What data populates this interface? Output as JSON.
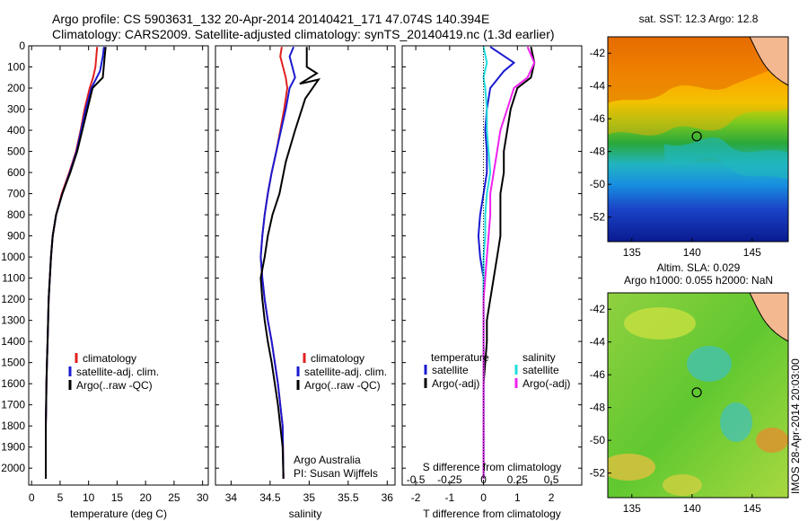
{
  "header": {
    "line1": "Argo profile: CS 5903631_132 20-Apr-2014 20140421_171 47.074S 140.394E",
    "line2": "Climatology: CARS2009. Satellite-adjusted climatology: synTS_20140419.nc (1.3d earlier)"
  },
  "colors": {
    "climatology": "#e02020",
    "satellite": "#1a1ad0",
    "argo": "#000000",
    "salinity_satellite": "#22dddd",
    "salinity_argo": "#ee22ee"
  },
  "chart_data": [
    {
      "type": "line",
      "panel": "temperature",
      "xlabel": "temperature (deg C)",
      "ylabel": "",
      "xlim": [
        -0.5,
        31
      ],
      "ylim": [
        2080,
        0
      ],
      "x_ticks": [
        "0",
        "5",
        "10",
        "15",
        "20",
        "25",
        "30"
      ],
      "y_ticks": [
        "0",
        "100",
        "200",
        "300",
        "400",
        "500",
        "600",
        "700",
        "800",
        "900",
        "1000",
        "1100",
        "1200",
        "1300",
        "1400",
        "1500",
        "1600",
        "1700",
        "1800",
        "1900",
        "2000"
      ],
      "legend": [
        "climatology",
        "satellite-adj. clim.",
        "Argo(..raw -QC)"
      ],
      "legend_position": "lower-right",
      "series": [
        {
          "name": "climatology",
          "color": "red",
          "x": [
            11.5,
            11.2,
            10.8,
            10.2,
            9.3,
            8.6,
            7.8,
            6.6,
            5.3,
            4.3,
            3.7,
            3.4,
            3.2,
            3.0,
            2.9,
            2.8,
            2.7,
            2.6,
            2.55,
            2.5,
            2.5
          ],
          "depth": [
            5,
            100,
            150,
            200,
            300,
            400,
            500,
            600,
            700,
            800,
            900,
            1000,
            1100,
            1200,
            1300,
            1400,
            1500,
            1600,
            1700,
            1800,
            2050
          ]
        },
        {
          "name": "satellite-adj. clim.",
          "color": "blue",
          "x": [
            12.7,
            12.5,
            12.0,
            10.5,
            9.5,
            8.7,
            7.9,
            6.7,
            5.4,
            4.3,
            3.7,
            3.4,
            3.2,
            3.0,
            2.9,
            2.8,
            2.7,
            2.6,
            2.55,
            2.5,
            2.5
          ],
          "depth": [
            5,
            50,
            120,
            200,
            300,
            400,
            500,
            600,
            700,
            800,
            900,
            1000,
            1100,
            1200,
            1300,
            1400,
            1500,
            1600,
            1700,
            1800,
            2050
          ]
        },
        {
          "name": "Argo(..raw -QC)",
          "color": "black",
          "x": [
            13.0,
            12.8,
            12.5,
            10.7,
            9.8,
            8.9,
            8.0,
            6.8,
            5.4,
            4.3,
            3.7,
            3.4,
            3.2,
            3.0,
            2.9,
            2.8,
            2.7,
            2.6,
            2.55,
            2.5,
            2.5
          ],
          "depth": [
            5,
            60,
            150,
            200,
            300,
            400,
            500,
            600,
            700,
            800,
            900,
            1000,
            1100,
            1200,
            1300,
            1400,
            1500,
            1600,
            1700,
            1800,
            2050
          ]
        }
      ]
    },
    {
      "type": "line",
      "panel": "salinity",
      "xlabel": "salinity",
      "xlim": [
        33.8,
        36.1
      ],
      "ylim": [
        2080,
        0
      ],
      "x_ticks": [
        "34",
        "34.5",
        "35",
        "35.5",
        "36"
      ],
      "legend": [
        "climatology",
        "satellite-adj. clim.",
        "Argo(..raw -QC)"
      ],
      "annotation": [
        "Argo Australia",
        "PI: Susan Wijffels"
      ],
      "series": [
        {
          "name": "climatology",
          "color": "red",
          "x": [
            34.65,
            34.63,
            34.7,
            34.72,
            34.68,
            34.63,
            34.58,
            34.52,
            34.47,
            34.43,
            34.4,
            34.38,
            34.4,
            34.43,
            34.47,
            34.52,
            34.56,
            34.6,
            34.63,
            34.66,
            34.67
          ],
          "depth": [
            5,
            50,
            150,
            200,
            300,
            400,
            500,
            600,
            700,
            800,
            900,
            1000,
            1100,
            1200,
            1300,
            1400,
            1500,
            1600,
            1700,
            1800,
            2050
          ]
        },
        {
          "name": "satellite-adj. clim.",
          "color": "blue",
          "x": [
            34.8,
            34.75,
            34.82,
            34.75,
            34.7,
            34.64,
            34.58,
            34.52,
            34.47,
            34.43,
            34.4,
            34.38,
            34.4,
            34.43,
            34.47,
            34.52,
            34.56,
            34.6,
            34.63,
            34.66,
            34.67
          ],
          "depth": [
            5,
            50,
            150,
            200,
            300,
            400,
            500,
            600,
            700,
            800,
            900,
            1000,
            1100,
            1200,
            1300,
            1400,
            1500,
            1600,
            1700,
            1800,
            2050
          ]
        },
        {
          "name": "Argo(..raw -QC)",
          "color": "black",
          "x": [
            34.97,
            34.97,
            35.1,
            34.88,
            35.12,
            34.95,
            34.82,
            34.7,
            34.62,
            34.53,
            34.47,
            34.43,
            34.38,
            34.4,
            34.43,
            34.47,
            34.52,
            34.56,
            34.6,
            34.63,
            34.66,
            34.67
          ],
          "depth": [
            5,
            100,
            130,
            180,
            160,
            250,
            400,
            550,
            700,
            800,
            900,
            1000,
            1100,
            1200,
            1300,
            1400,
            1500,
            1600,
            1700,
            1800,
            1900,
            2050
          ]
        }
      ]
    },
    {
      "type": "line",
      "panel": "difference",
      "xlabel": "T difference from climatology",
      "xlabel_top": "S difference from climatology",
      "xlim": [
        -2.4,
        2.9
      ],
      "ylim": [
        2080,
        0
      ],
      "x_ticks": [
        "-2",
        "-1",
        "0",
        "1",
        "2"
      ],
      "x_ticks_top": [
        "-0.5",
        "-0.25",
        "0",
        "0.25",
        "0.5"
      ],
      "legend_left_title": "temperature",
      "legend_right_title": "salinity",
      "legend_left": [
        "satellite",
        "Argo(-adj)"
      ],
      "legend_right": [
        "satellite",
        "Argo(-adj)"
      ],
      "series": [
        {
          "name": "temperature satellite",
          "color": "blue",
          "x": [
            0.2,
            0.9,
            0.6,
            0.2,
            0.1,
            0.05,
            0.1,
            0.1,
            0.0,
            -0.1,
            -0.15,
            -0.1,
            0.0,
            0.0,
            0.0,
            0.0,
            0.0,
            0.0,
            0.0,
            0.0
          ],
          "depth": [
            5,
            80,
            120,
            200,
            300,
            400,
            500,
            600,
            700,
            800,
            900,
            1000,
            1100,
            1200,
            1300,
            1400,
            1500,
            1600,
            1800,
            2050
          ]
        },
        {
          "name": "temperature Argo(-adj)",
          "color": "black",
          "x": [
            1.4,
            1.5,
            1.4,
            1.0,
            0.8,
            0.7,
            0.6,
            0.6,
            0.5,
            0.5,
            0.5,
            0.4,
            0.3,
            0.2,
            0.1,
            0.1,
            0.05,
            0.0,
            0.0,
            0.0
          ],
          "depth": [
            5,
            80,
            150,
            200,
            300,
            400,
            500,
            600,
            700,
            800,
            900,
            1000,
            1100,
            1200,
            1300,
            1400,
            1500,
            1600,
            1800,
            2050
          ]
        },
        {
          "name": "salinity satellite",
          "color": "cyan",
          "x": [
            0.0,
            0.1,
            0.0,
            0.05,
            0.1,
            0.1,
            0.15,
            0.2,
            0.1,
            0.05,
            0.05,
            0.0,
            0.0,
            0.0,
            0.0,
            0.0,
            0.0,
            0.0,
            0.0,
            0.0
          ],
          "depth": [
            5,
            80,
            150,
            200,
            300,
            400,
            500,
            600,
            700,
            800,
            900,
            1000,
            1100,
            1200,
            1300,
            1400,
            1500,
            1600,
            1800,
            2050
          ]
        },
        {
          "name": "salinity Argo(-adj)",
          "color": "magenta",
          "x": [
            1.3,
            1.5,
            1.3,
            0.9,
            0.7,
            0.5,
            0.4,
            0.3,
            0.2,
            0.2,
            0.15,
            0.1,
            0.05,
            0.0,
            0.0,
            0.0,
            0.0,
            0.0,
            0.0,
            0.0
          ],
          "depth": [
            5,
            80,
            150,
            200,
            300,
            400,
            500,
            600,
            700,
            800,
            900,
            1000,
            1100,
            1200,
            1300,
            1400,
            1500,
            1600,
            1800,
            2050
          ]
        }
      ]
    },
    {
      "type": "heatmap",
      "panel": "sst-map",
      "title": "sat. SST: 12.3 Argo: 12.8",
      "xlim": [
        133,
        148
      ],
      "ylim": [
        -53.5,
        -41
      ],
      "x_ticks": [
        "135",
        "140",
        "145"
      ],
      "y_ticks": [
        "-42",
        "-44",
        "-46",
        "-48",
        "-50",
        "-52"
      ],
      "marker": {
        "lon": 140.394,
        "lat": -47.074
      }
    },
    {
      "type": "heatmap",
      "panel": "sla-map",
      "title": "Altim. SLA: 0.029",
      "subtitle": "Argo h1000: 0.055 h2000: NaN",
      "xlim": [
        133,
        148
      ],
      "ylim": [
        -53.5,
        -41
      ],
      "x_ticks": [
        "135",
        "140",
        "145"
      ],
      "y_ticks": [
        "-42",
        "-44",
        "-46",
        "-48",
        "-50",
        "-52"
      ],
      "marker": {
        "lon": 140.394,
        "lat": -47.074
      }
    }
  ],
  "watermark": "IMOS 28-Apr-2014 20:03:00"
}
